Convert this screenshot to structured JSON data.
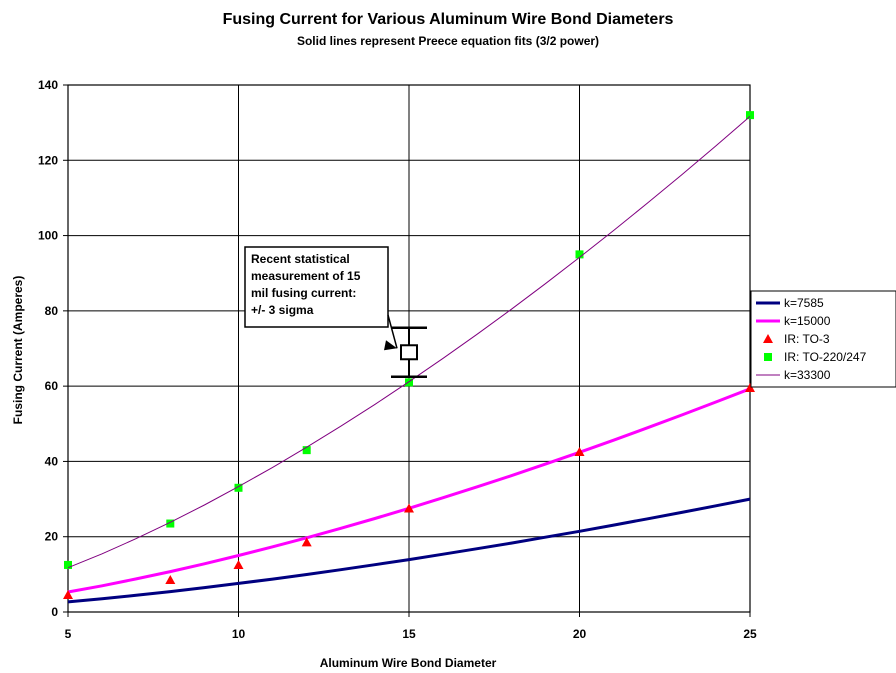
{
  "chart_data": {
    "type": "scatter",
    "title": "Fusing Current for Various Aluminum Wire Bond Diameters",
    "subtitle": "Solid lines represent Preece equation fits (3/2 power)",
    "xlabel": "Aluminum Wire Bond Diameter",
    "ylabel": "Fusing Current (Amperes)",
    "xlim": [
      5,
      25
    ],
    "ylim": [
      0,
      140
    ],
    "x_ticks": [
      "5",
      "10",
      "15",
      "20",
      "25"
    ],
    "y_ticks": [
      "0",
      "20",
      "40",
      "60",
      "80",
      "100",
      "120",
      "140"
    ],
    "grid": true,
    "legend_position": "right",
    "series": [
      {
        "name": "k=7585",
        "kind": "line",
        "k": 7585,
        "color": "#000080",
        "style": "thick",
        "x": [
          5,
          6,
          7,
          8,
          9,
          10,
          11,
          12,
          13,
          14,
          15,
          16,
          17,
          18,
          19,
          20,
          21,
          22,
          23,
          24,
          25
        ],
        "y": [
          2.68,
          3.52,
          4.44,
          5.43,
          6.47,
          7.59,
          8.75,
          9.97,
          11.24,
          12.56,
          13.93,
          15.35,
          16.81,
          18.31,
          19.86,
          21.45,
          23.09,
          24.75,
          26.46,
          28.21,
          29.98
        ]
      },
      {
        "name": "k=15000",
        "kind": "line",
        "k": 15000,
        "color": "#ff00ff",
        "style": "thick",
        "x": [
          5,
          6,
          7,
          8,
          9,
          10,
          11,
          12,
          13,
          14,
          15,
          16,
          17,
          18,
          19,
          20,
          21,
          22,
          23,
          24,
          25
        ],
        "y": [
          5.3,
          6.97,
          8.78,
          10.73,
          12.81,
          15.0,
          17.31,
          19.72,
          22.23,
          24.84,
          27.56,
          30.36,
          33.25,
          36.22,
          39.28,
          42.43,
          45.65,
          48.95,
          52.33,
          55.78,
          59.29
        ]
      },
      {
        "name": "IR: TO-3",
        "kind": "marker",
        "marker": "triangle",
        "color": "#ff0000",
        "x": [
          5,
          8,
          10,
          12,
          15,
          20,
          25
        ],
        "y": [
          4.5,
          8.5,
          12.5,
          18.5,
          27.5,
          42.5,
          59.5
        ]
      },
      {
        "name": "IR: TO-220/247",
        "kind": "marker",
        "marker": "square",
        "color": "#00ff00",
        "x": [
          5,
          8,
          10,
          12,
          15,
          20,
          25
        ],
        "y": [
          12.5,
          23.5,
          33,
          43,
          61,
          95,
          132
        ]
      },
      {
        "name": "k=33300",
        "kind": "line",
        "k": 33300,
        "color": "#800080",
        "style": "thin",
        "x": [
          5,
          6,
          7,
          8,
          9,
          10,
          11,
          12,
          13,
          14,
          15,
          16,
          17,
          18,
          19,
          20,
          21,
          22,
          23,
          24,
          25
        ],
        "y": [
          11.77,
          15.47,
          19.5,
          23.83,
          28.43,
          33.3,
          38.42,
          43.77,
          49.36,
          55.16,
          61.18,
          67.4,
          73.81,
          80.42,
          87.22,
          94.19,
          101.35,
          108.68,
          116.17,
          123.83,
          131.65
        ]
      }
    ],
    "error_bar": {
      "x": 15,
      "center": 69,
      "low": 62.5,
      "high": 75.5
    },
    "annotation": {
      "lines": [
        "Recent statistical",
        "measurement of 15",
        "mil fusing current:",
        "+/- 3 sigma"
      ]
    }
  }
}
